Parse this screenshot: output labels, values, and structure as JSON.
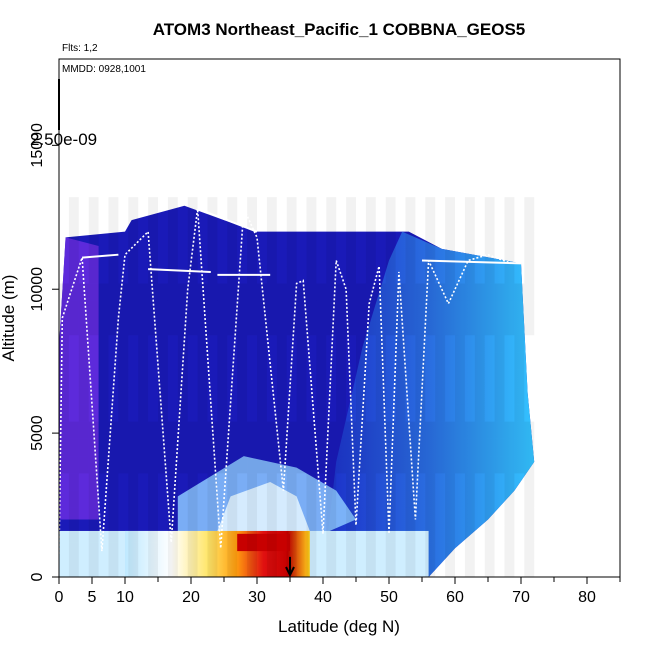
{
  "chart_data": {
    "type": "heatmap",
    "title": "ATOM3 Northeast_Pacific_1 COBBNA_GEOS5",
    "xlabel": "Latitude (deg N)",
    "ylabel": "Altitude (m)",
    "xlim": [
      0,
      85
    ],
    "ylim": [
      0,
      18000
    ],
    "x_ticks": [
      "0",
      "5",
      "10",
      "20",
      "30",
      "40",
      "50",
      "60",
      "70",
      "80"
    ],
    "y_ticks": [
      "0",
      "5000",
      "10000",
      "15000"
    ],
    "flights_note": "Flts: 1,2",
    "date_note": "MMDD: 0928,1001",
    "scale_label": "2.50e-09",
    "column_tops": [
      {
        "lat": 0,
        "top": 8000
      },
      {
        "lat": 1,
        "top": 11800
      },
      {
        "lat": 10,
        "top": 12000
      },
      {
        "lat": 11,
        "top": 12400
      },
      {
        "lat": 19,
        "top": 12900
      },
      {
        "lat": 25,
        "top": 12400
      },
      {
        "lat": 30,
        "top": 12000
      },
      {
        "lat": 40,
        "top": 12000
      },
      {
        "lat": 53,
        "top": 12000
      },
      {
        "lat": 58,
        "top": 11400
      },
      {
        "lat": 70,
        "top": 10900
      },
      {
        "lat": 71,
        "top": 6400
      },
      {
        "lat": 72,
        "top": 4000
      },
      {
        "lat": 69,
        "top": 3000
      },
      {
        "lat": 65,
        "top": 2000
      },
      {
        "lat": 60,
        "top": 1000
      },
      {
        "lat": 56,
        "top": 0
      }
    ],
    "hotspot": {
      "lat_range": [
        23,
        37
      ],
      "alt_range": [
        900,
        1500
      ],
      "level": "max"
    },
    "track_lat": [
      0,
      0.5,
      3.5,
      6.5,
      9,
      10,
      13.5,
      17,
      19.5,
      21,
      24.5,
      28,
      30,
      34,
      36,
      37,
      40,
      42,
      43.5,
      45,
      47,
      48.5,
      50,
      51.5,
      54,
      56,
      59,
      62,
      65,
      68.5
    ],
    "track_alt": [
      800,
      9000,
      11100,
      900,
      9000,
      11200,
      12000,
      1200,
      10000,
      12800,
      1000,
      12800,
      11800,
      3000,
      10200,
      10300,
      1500,
      11000,
      10000,
      1800,
      9500,
      10800,
      1500,
      10600,
      2000,
      11000,
      9500,
      11000,
      11200,
      10900
    ],
    "arrow_lat": 35
  }
}
